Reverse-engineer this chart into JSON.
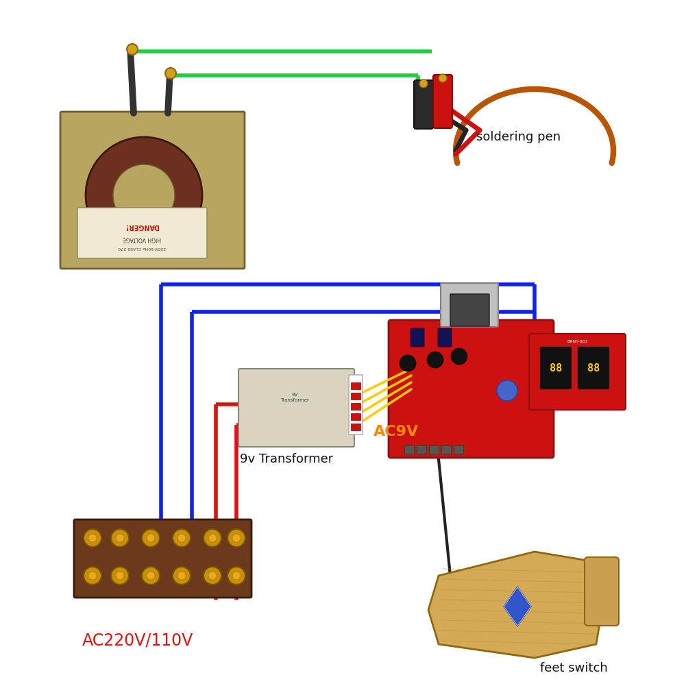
{
  "background_color": "#ffffff",
  "wire_green": "#22cc44",
  "wire_blue": "#1122ee",
  "wire_red": "#dd1111",
  "wire_yellow": "#ffcc00",
  "wire_black": "#222222",
  "text_black": "#111111",
  "text_red": "#dd1111",
  "text_orange": "#ff8800",
  "labels": {
    "soldering_pen": "soldering pen",
    "transformer_9v": "9v Transformer",
    "ac220v": "AC220V/110V",
    "ac9v": "AC9V",
    "feet_switch": "feet switch"
  },
  "figsize": [
    10.01,
    10.01
  ],
  "dpi": 100
}
